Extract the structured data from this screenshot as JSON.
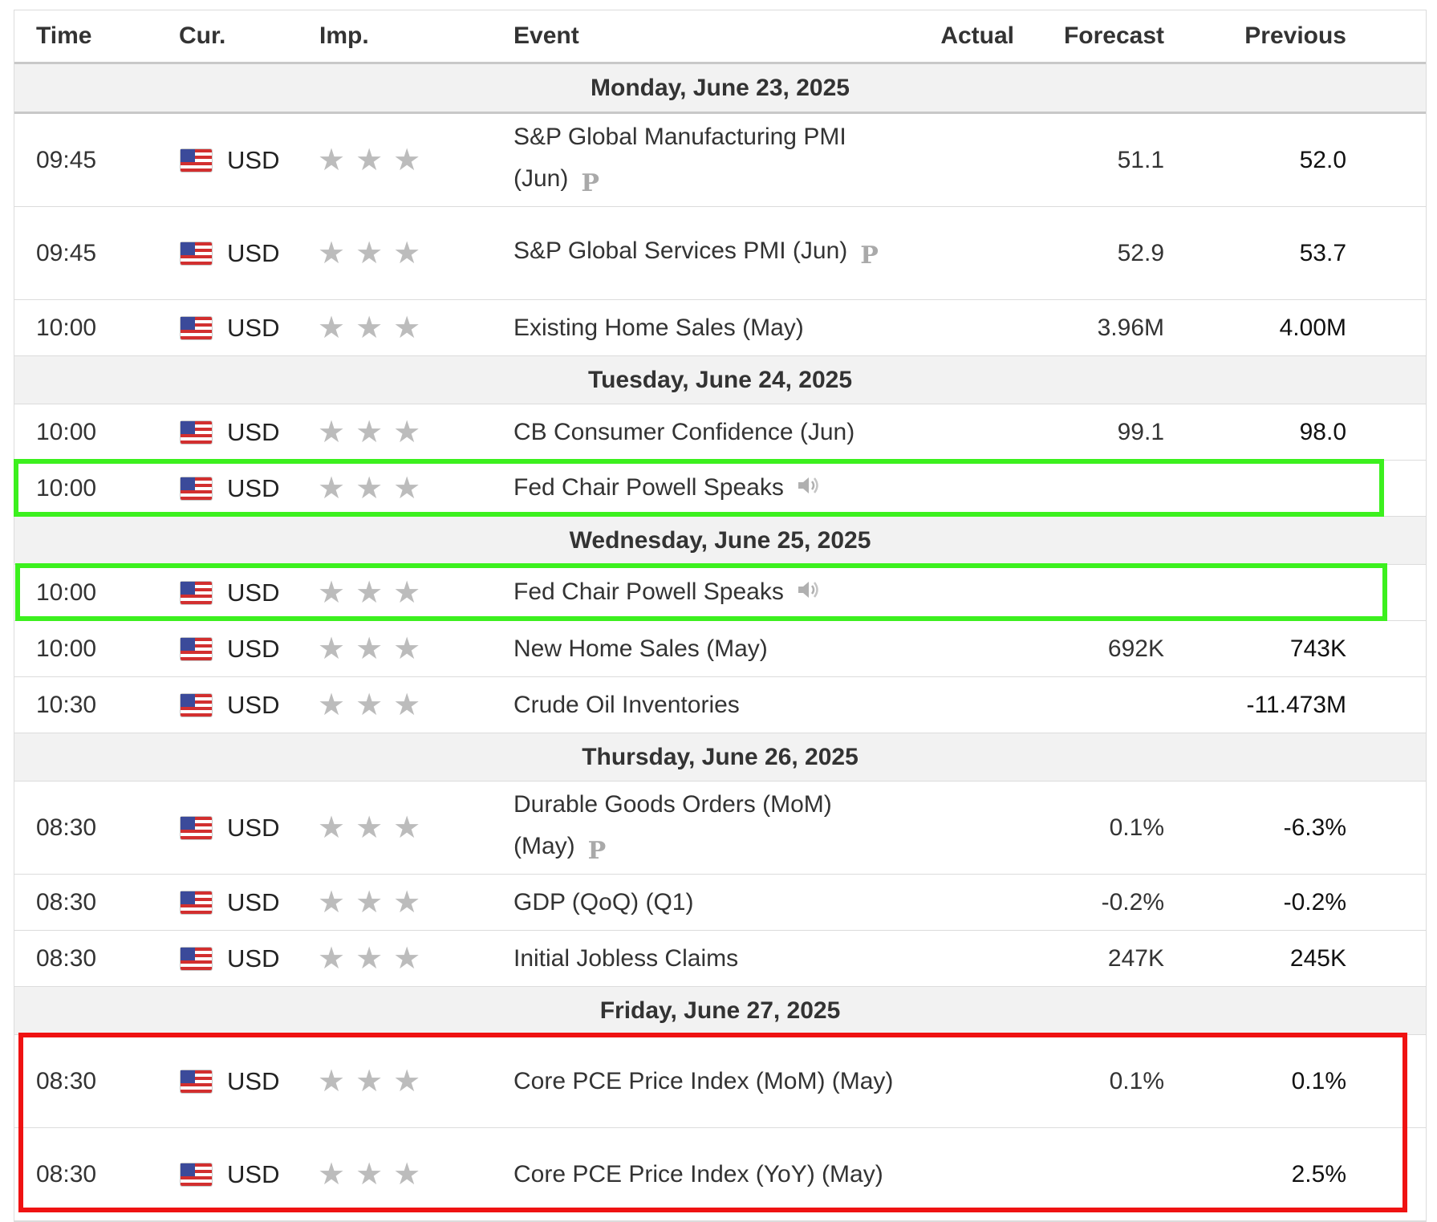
{
  "header": {
    "time": "Time",
    "cur": "Cur.",
    "imp": "Imp.",
    "event": "Event",
    "actual": "Actual",
    "forecast": "Forecast",
    "previous": "Previous"
  },
  "days": [
    {
      "date": "Monday, June 23, 2025",
      "events": [
        {
          "time": "09:45",
          "cur": "USD",
          "imp_stars": 3,
          "event": "S&P Global Manufacturing PMI (Jun)",
          "prelim": "P",
          "actual": "",
          "forecast": "51.1",
          "previous": "52.0"
        },
        {
          "time": "09:45",
          "cur": "USD",
          "imp_stars": 3,
          "event": "S&P Global Services PMI (Jun)",
          "prelim": "P",
          "actual": "",
          "forecast": "52.9",
          "previous": "53.7"
        },
        {
          "time": "10:00",
          "cur": "USD",
          "imp_stars": 3,
          "event": "Existing Home Sales (May)",
          "actual": "",
          "forecast": "3.96M",
          "previous": "4.00M"
        }
      ]
    },
    {
      "date": "Tuesday, June 24, 2025",
      "events": [
        {
          "time": "10:00",
          "cur": "USD",
          "imp_stars": 3,
          "event": "CB Consumer Confidence (Jun)",
          "actual": "",
          "forecast": "99.1",
          "previous": "98.0"
        },
        {
          "time": "10:00",
          "cur": "USD",
          "imp_stars": 3,
          "event": "Fed Chair Powell Speaks",
          "speech": true,
          "actual": "",
          "forecast": "",
          "previous": ""
        }
      ]
    },
    {
      "date": "Wednesday, June 25, 2025",
      "events": [
        {
          "time": "10:00",
          "cur": "USD",
          "imp_stars": 3,
          "event": "Fed Chair Powell Speaks",
          "speech": true,
          "actual": "",
          "forecast": "",
          "previous": ""
        },
        {
          "time": "10:00",
          "cur": "USD",
          "imp_stars": 3,
          "event": "New Home Sales (May)",
          "actual": "",
          "forecast": "692K",
          "previous": "743K"
        },
        {
          "time": "10:30",
          "cur": "USD",
          "imp_stars": 3,
          "event": "Crude Oil Inventories",
          "actual": "",
          "forecast": "",
          "previous": "-11.473M"
        }
      ]
    },
    {
      "date": "Thursday, June 26, 2025",
      "events": [
        {
          "time": "08:30",
          "cur": "USD",
          "imp_stars": 3,
          "event": "Durable Goods Orders (MoM) (May)",
          "prelim": "P",
          "actual": "",
          "forecast": "0.1%",
          "previous": "-6.3%"
        },
        {
          "time": "08:30",
          "cur": "USD",
          "imp_stars": 3,
          "event": "GDP (QoQ) (Q1)",
          "actual": "",
          "forecast": "-0.2%",
          "previous": "-0.2%"
        },
        {
          "time": "08:30",
          "cur": "USD",
          "imp_stars": 3,
          "event": "Initial Jobless Claims",
          "actual": "",
          "forecast": "247K",
          "previous": "245K"
        }
      ]
    },
    {
      "date": "Friday, June 27, 2025",
      "events": [
        {
          "time": "08:30",
          "cur": "USD",
          "imp_stars": 3,
          "event": "Core PCE Price Index (MoM) (May)",
          "actual": "",
          "forecast": "0.1%",
          "previous": "0.1%"
        },
        {
          "time": "08:30",
          "cur": "USD",
          "imp_stars": 3,
          "event": "Core PCE Price Index (YoY) (May)",
          "actual": "",
          "forecast": "",
          "previous": "2.5%"
        }
      ]
    }
  ],
  "colors": {
    "highlight_green": "#3cf01e",
    "highlight_red": "#ef1212",
    "star": "#bcbcbc",
    "day_band": "#f2f2f2"
  }
}
